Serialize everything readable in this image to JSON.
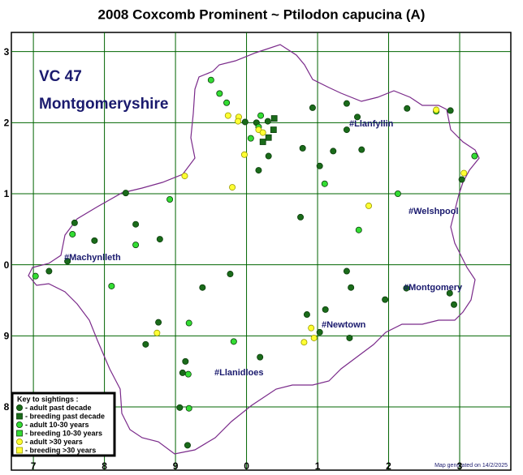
{
  "chart_data": {
    "type": "scatter",
    "title": "2008 Coxcomb Prominent ~ Ptilodon capucina (A)",
    "annotations": [
      "VC 47",
      "Montgomeryshire"
    ],
    "places": [
      "#Llanfyllin",
      "#Welshpool",
      "#Machynlleth",
      "#Montgomery",
      "#Newtown",
      "#Llanidloes"
    ],
    "footer": "Map generated on 14/2/2025",
    "legend_title": "Key to sightings :",
    "grid": true,
    "grid_color": "#006400",
    "outline_color": "#7a2a8a",
    "xlim": [
      6.69,
      13.72
    ],
    "ylim": [
      -2.89,
      3.27
    ],
    "xticks": [
      7,
      8,
      9,
      {
        "value": 10,
        "label": "0"
      },
      {
        "value": 11,
        "label": "1"
      },
      {
        "value": 12,
        "label": "2"
      },
      {
        "value": 13,
        "label": "3"
      }
    ],
    "yticks": [
      3,
      2,
      1,
      0,
      {
        "value": -1,
        "label": "9"
      },
      {
        "value": -2,
        "label": "8"
      }
    ],
    "series": [
      {
        "name": "- adult past decade",
        "marker": "circle",
        "color": "#1a6b1a",
        "x": [
          9.98,
          10.14,
          10.3,
          10.93,
          11.41,
          11.56,
          12.26,
          10.79,
          11.22,
          11.62,
          11.03,
          10.17,
          10.31,
          11.41,
          8.3,
          8.44,
          8.78,
          7.86,
          7.58,
          7.48,
          7.22,
          9.38,
          9.77,
          10.76,
          11.41,
          11.47,
          11.95,
          11.11,
          10.85,
          11.03,
          11.45,
          12.25,
          12.86,
          12.92,
          10.19,
          8.76,
          8.58,
          9.14,
          9.1,
          9.06,
          9.17,
          13.03,
          12.87
        ],
        "y": [
          2.01,
          2.0,
          2.02,
          2.21,
          2.27,
          2.08,
          2.2,
          1.64,
          1.6,
          1.62,
          1.39,
          1.33,
          1.53,
          1.9,
          1.01,
          0.57,
          0.36,
          0.34,
          0.59,
          0.05,
          -0.09,
          -0.32,
          -0.13,
          0.67,
          -0.09,
          -0.32,
          -0.49,
          -0.63,
          -0.7,
          -0.95,
          -1.03,
          -0.33,
          -0.4,
          -0.56,
          -1.3,
          -0.81,
          -1.12,
          -1.36,
          -1.52,
          -2.01,
          -2.54,
          1.2,
          2.17
        ]
      },
      {
        "name": "- breeding past decade",
        "marker": "square",
        "color": "#1a6b1a",
        "x": [
          10.39,
          10.38,
          10.31,
          10.23
        ],
        "y": [
          2.06,
          1.9,
          1.79,
          1.73
        ]
      },
      {
        "name": "- adult 10-30 years",
        "marker": "circle",
        "color": "#33dd33",
        "x": [
          9.5,
          9.62,
          9.72,
          10.2,
          10.17,
          10.06,
          8.44,
          8.92,
          8.1,
          7.55,
          7.03,
          9.19,
          9.82,
          9.18,
          9.19,
          11.1,
          11.58,
          12.13,
          13.21,
          12.67
        ],
        "y": [
          2.6,
          2.41,
          2.28,
          2.1,
          1.94,
          1.78,
          0.28,
          0.92,
          -0.3,
          0.43,
          -0.16,
          -0.82,
          -1.08,
          -1.54,
          -2.02,
          1.14,
          0.49,
          1.0,
          1.53,
          2.16
        ]
      },
      {
        "name": "- breeding 10-30 years",
        "marker": "square",
        "color": "#33dd33",
        "x": [],
        "y": []
      },
      {
        "name": "- adult >30 years",
        "marker": "circle",
        "color": "#ffff33",
        "x": [
          9.74,
          9.89,
          9.88,
          10.17,
          10.23,
          9.97,
          9.8,
          9.13,
          11.72,
          12.67,
          13.06,
          10.91,
          10.81,
          10.95,
          8.74
        ],
        "y": [
          2.1,
          2.08,
          2.02,
          1.9,
          1.86,
          1.55,
          1.09,
          1.25,
          0.83,
          2.18,
          1.29,
          -0.89,
          -1.09,
          -1.03,
          -0.96
        ]
      },
      {
        "name": "- breeding >30 years",
        "marker": "square",
        "color": "#ffff33",
        "x": [],
        "y": []
      }
    ]
  }
}
